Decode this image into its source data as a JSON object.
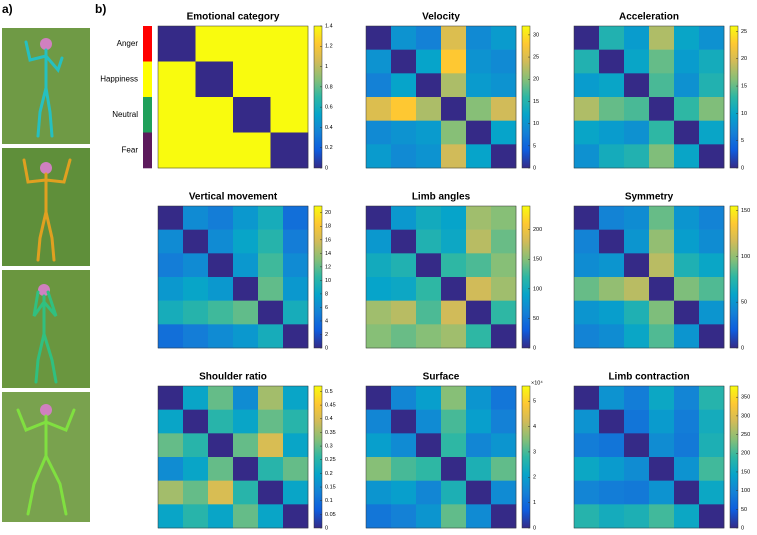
{
  "figure": {
    "label_a": "a)",
    "label_b": "b)"
  },
  "chart_data": [
    {
      "type": "heatmap",
      "title": "Emotional category",
      "categories": [
        "Anger",
        "Happiness",
        "Neutral",
        "Fear"
      ],
      "category_colors": [
        "#ff0000",
        "#ffff00",
        "#1fa05a",
        "#5c1a5c"
      ],
      "matrix": [
        [
          0,
          1.4,
          1.4,
          1.4
        ],
        [
          1.4,
          0,
          1.4,
          1.4
        ],
        [
          1.4,
          1.4,
          0,
          1.4
        ],
        [
          1.4,
          1.4,
          1.4,
          0
        ]
      ],
      "ylim": [
        0,
        1.4
      ],
      "yticks": [
        0,
        0.2,
        0.4,
        0.6,
        0.8,
        1,
        1.2,
        1.4
      ]
    },
    {
      "type": "heatmap",
      "title": "Velocity",
      "matrix": [
        [
          0,
          10,
          8,
          25,
          9,
          11
        ],
        [
          10,
          0,
          12,
          28,
          10,
          9
        ],
        [
          8,
          12,
          0,
          22,
          11,
          10
        ],
        [
          25,
          28,
          22,
          0,
          20,
          24
        ],
        [
          9,
          10,
          11,
          20,
          0,
          12
        ],
        [
          11,
          9,
          10,
          24,
          12,
          0
        ]
      ],
      "ylim": [
        0,
        32
      ],
      "yticks": [
        0,
        5,
        10,
        15,
        20,
        25,
        30
      ]
    },
    {
      "type": "heatmap",
      "title": "Acceleration",
      "matrix": [
        [
          0,
          12,
          9,
          18,
          10,
          8
        ],
        [
          12,
          0,
          10,
          15,
          9,
          11
        ],
        [
          9,
          10,
          0,
          14,
          8,
          12
        ],
        [
          18,
          15,
          14,
          0,
          13,
          16
        ],
        [
          10,
          9,
          8,
          13,
          0,
          10
        ],
        [
          8,
          11,
          12,
          16,
          10,
          0
        ]
      ],
      "ylim": [
        0,
        26
      ],
      "yticks": [
        0,
        5,
        10,
        15,
        20,
        25
      ]
    },
    {
      "type": "heatmap",
      "title": "Vertical movement",
      "matrix": [
        [
          0,
          6,
          5,
          7,
          9,
          4
        ],
        [
          6,
          0,
          6,
          8,
          10,
          5
        ],
        [
          5,
          6,
          0,
          7,
          11,
          6
        ],
        [
          7,
          8,
          7,
          0,
          12,
          7
        ],
        [
          9,
          10,
          11,
          12,
          0,
          9
        ],
        [
          4,
          5,
          6,
          7,
          9,
          0
        ]
      ],
      "ylim": [
        0,
        21
      ],
      "yticks": [
        0,
        2,
        4,
        6,
        8,
        10,
        12,
        14,
        16,
        18,
        20
      ]
    },
    {
      "type": "heatmap",
      "title": "Limb angles",
      "matrix": [
        [
          0,
          80,
          100,
          90,
          160,
          150
        ],
        [
          80,
          0,
          110,
          95,
          170,
          140
        ],
        [
          100,
          110,
          0,
          120,
          130,
          150
        ],
        [
          90,
          95,
          120,
          0,
          180,
          160
        ],
        [
          160,
          170,
          130,
          180,
          0,
          120
        ],
        [
          150,
          140,
          150,
          160,
          120,
          0
        ]
      ],
      "ylim": [
        0,
        240
      ],
      "yticks": [
        0,
        50,
        100,
        150,
        200
      ]
    },
    {
      "type": "heatmap",
      "title": "Symmetry",
      "matrix": [
        [
          0,
          40,
          45,
          90,
          50,
          40
        ],
        [
          40,
          0,
          50,
          100,
          55,
          45
        ],
        [
          45,
          50,
          0,
          110,
          70,
          60
        ],
        [
          90,
          100,
          110,
          0,
          95,
          85
        ],
        [
          50,
          55,
          70,
          95,
          0,
          50
        ],
        [
          40,
          45,
          60,
          85,
          50,
          0
        ]
      ],
      "ylim": [
        0,
        155
      ],
      "yticks": [
        0,
        50,
        100,
        150
      ]
    },
    {
      "type": "heatmap",
      "title": "Shoulder ratio",
      "matrix": [
        [
          0,
          0.2,
          0.3,
          0.15,
          0.35,
          0.2
        ],
        [
          0.2,
          0,
          0.25,
          0.2,
          0.3,
          0.25
        ],
        [
          0.3,
          0.25,
          0,
          0.3,
          0.4,
          0.2
        ],
        [
          0.15,
          0.2,
          0.3,
          0,
          0.25,
          0.3
        ],
        [
          0.35,
          0.3,
          0.4,
          0.25,
          0,
          0.2
        ],
        [
          0.2,
          0.25,
          0.2,
          0.3,
          0.2,
          0
        ]
      ],
      "ylim": [
        0,
        0.52
      ],
      "yticks": [
        0,
        0.05,
        0.1,
        0.15,
        0.2,
        0.25,
        0.3,
        0.35,
        0.4,
        0.45,
        0.5
      ]
    },
    {
      "type": "heatmap",
      "title": "Surface",
      "colorbar_exponent": "×10⁴",
      "matrix": [
        [
          0,
          1.5,
          2,
          3.5,
          1.8,
          1.2
        ],
        [
          1.5,
          0,
          1.6,
          3,
          2,
          1.4
        ],
        [
          2,
          1.6,
          0,
          2.8,
          1.5,
          1.8
        ],
        [
          3.5,
          3,
          2.8,
          0,
          2.5,
          3.2
        ],
        [
          1.8,
          2,
          1.5,
          2.5,
          0,
          1.6
        ],
        [
          1.2,
          1.4,
          1.8,
          3.2,
          1.6,
          0
        ]
      ],
      "ylim": [
        0,
        5.6
      ],
      "yticks": [
        0,
        1,
        2,
        3,
        4,
        5
      ]
    },
    {
      "type": "heatmap",
      "title": "Limb contraction",
      "matrix": [
        [
          0,
          120,
          90,
          150,
          100,
          180
        ],
        [
          120,
          0,
          80,
          130,
          90,
          160
        ],
        [
          90,
          80,
          0,
          110,
          85,
          170
        ],
        [
          150,
          130,
          110,
          0,
          120,
          200
        ],
        [
          100,
          90,
          85,
          120,
          0,
          150
        ],
        [
          180,
          160,
          170,
          200,
          150,
          0
        ]
      ],
      "ylim": [
        0,
        380
      ],
      "yticks": [
        0,
        50,
        100,
        150,
        200,
        250,
        300,
        350
      ]
    }
  ]
}
